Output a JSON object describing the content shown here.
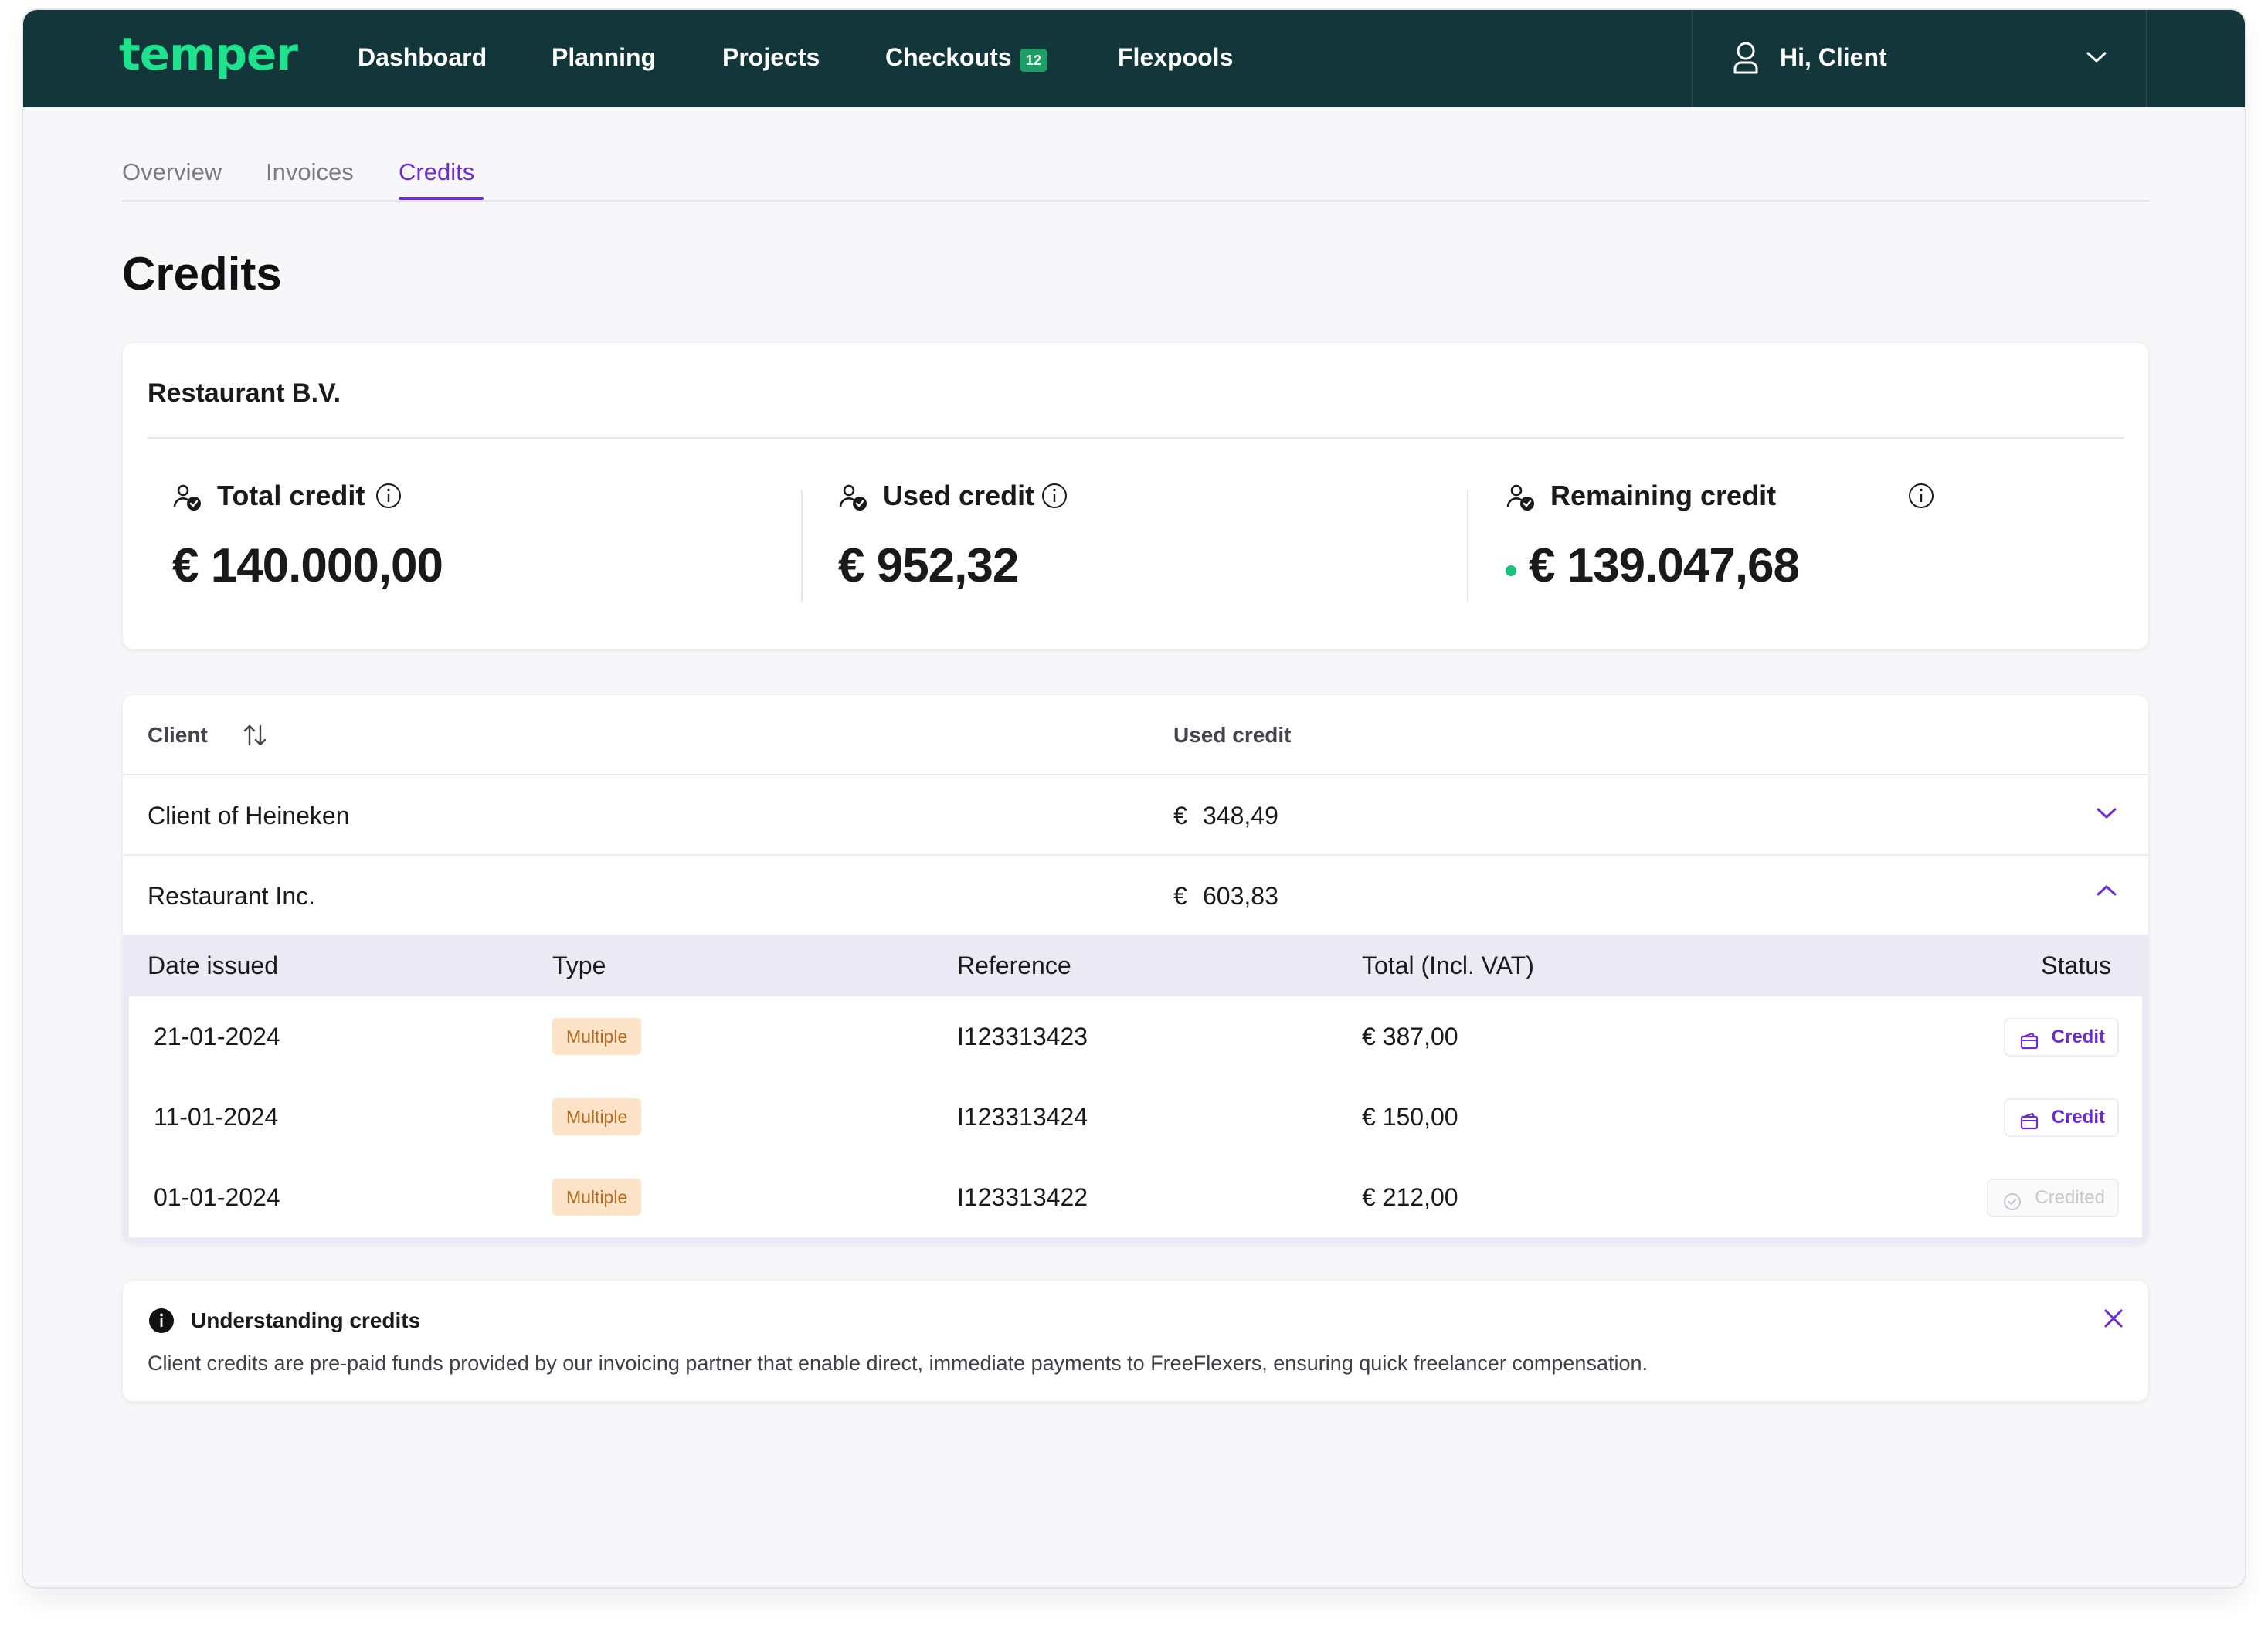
{
  "header": {
    "logo": "temper",
    "nav": [
      {
        "label": "Dashboard"
      },
      {
        "label": "Planning"
      },
      {
        "label": "Projects"
      },
      {
        "label": "Checkouts",
        "badge": "12"
      },
      {
        "label": "Flexpools"
      }
    ],
    "user_label": "Hi, Client"
  },
  "tabs": [
    {
      "label": "Overview"
    },
    {
      "label": "Invoices"
    },
    {
      "label": "Credits",
      "active": true
    }
  ],
  "page_title": "Credits",
  "summary": {
    "company": "Restaurant B.V.",
    "stats": [
      {
        "label": "Total credit",
        "value": "€ 140.000,00"
      },
      {
        "label": "Used credit",
        "value": "€ 952,32"
      },
      {
        "label": "Remaining credit",
        "value": "€ 139.047,68"
      }
    ]
  },
  "table": {
    "headers": {
      "client": "Client",
      "used_credit": "Used credit"
    },
    "rows": [
      {
        "client": "Client of Heineken",
        "currency": "€",
        "amount": "348,49",
        "expanded": false
      },
      {
        "client": "Restaurant Inc.",
        "currency": "€",
        "amount": "603,83",
        "expanded": true
      }
    ],
    "sub_headers": {
      "date": "Date issued",
      "type": "Type",
      "reference": "Reference",
      "total": "Total (Incl. VAT)",
      "status": "Status"
    },
    "sub_rows": [
      {
        "date": "21-01-2024",
        "type": "Multiple",
        "reference": "I123313423",
        "total": "€  387,00",
        "status": "Credit"
      },
      {
        "date": "11-01-2024",
        "type": "Multiple",
        "reference": "I123313424",
        "total": "€ 150,00",
        "status": "Credit"
      },
      {
        "date": "01-01-2024",
        "type": "Multiple",
        "reference": "I123313422",
        "total": "€ 212,00",
        "status": "Credited"
      }
    ]
  },
  "note": {
    "title": "Understanding credits",
    "text": "Client credits are pre-paid funds provided by our invoicing partner that enable direct, immediate payments to FreeFlexers, ensuring quick freelancer compensation."
  },
  "colors": {
    "header_bg": "#12363a",
    "brand_green": "#1fe28e",
    "accent_purple": "#6b2bd9",
    "pill_bg": "#fde3c7",
    "positive_dot": "#17c27a"
  }
}
